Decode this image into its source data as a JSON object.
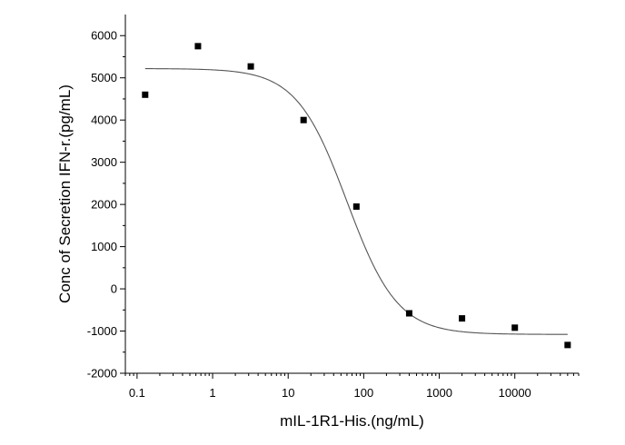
{
  "chart_data": {
    "type": "scatter",
    "title": "",
    "xlabel": "mIL-1R1-His.(ng/mL)",
    "ylabel": "Conc of Secretion IFN-r.(pg/mL)",
    "x_scale": "log",
    "xlim": [
      0.07,
      70000
    ],
    "ylim": [
      -2000,
      6500
    ],
    "x_ticks": [
      0.1,
      1,
      10,
      100,
      1000,
      10000
    ],
    "x_tick_labels": [
      "0.1",
      "1",
      "10",
      "100",
      "1000",
      "10000"
    ],
    "y_ticks": [
      -2000,
      -1000,
      0,
      1000,
      2000,
      3000,
      4000,
      5000,
      6000
    ],
    "y_tick_labels": [
      "-2000",
      "-1000",
      "0",
      "1000",
      "2000",
      "3000",
      "4000",
      "5000",
      "6000"
    ],
    "grid": false,
    "marker_color": "#000000",
    "line_color": "#555555",
    "series": [
      {
        "type": "scatter",
        "marker": "square",
        "points": [
          {
            "x": 0.128,
            "y": 4600
          },
          {
            "x": 0.64,
            "y": 5750
          },
          {
            "x": 3.2,
            "y": 5270
          },
          {
            "x": 16,
            "y": 4000
          },
          {
            "x": 80,
            "y": 1950
          },
          {
            "x": 400,
            "y": -580
          },
          {
            "x": 2000,
            "y": -700
          },
          {
            "x": 10000,
            "y": -920
          },
          {
            "x": 50000,
            "y": -1330
          }
        ]
      },
      {
        "type": "line",
        "fit": "four-parameter logistic",
        "params": {
          "top": 5220,
          "bottom": -1080,
          "ec50": 60,
          "hill": 1.3
        },
        "x_range": [
          0.128,
          50000
        ]
      }
    ]
  }
}
